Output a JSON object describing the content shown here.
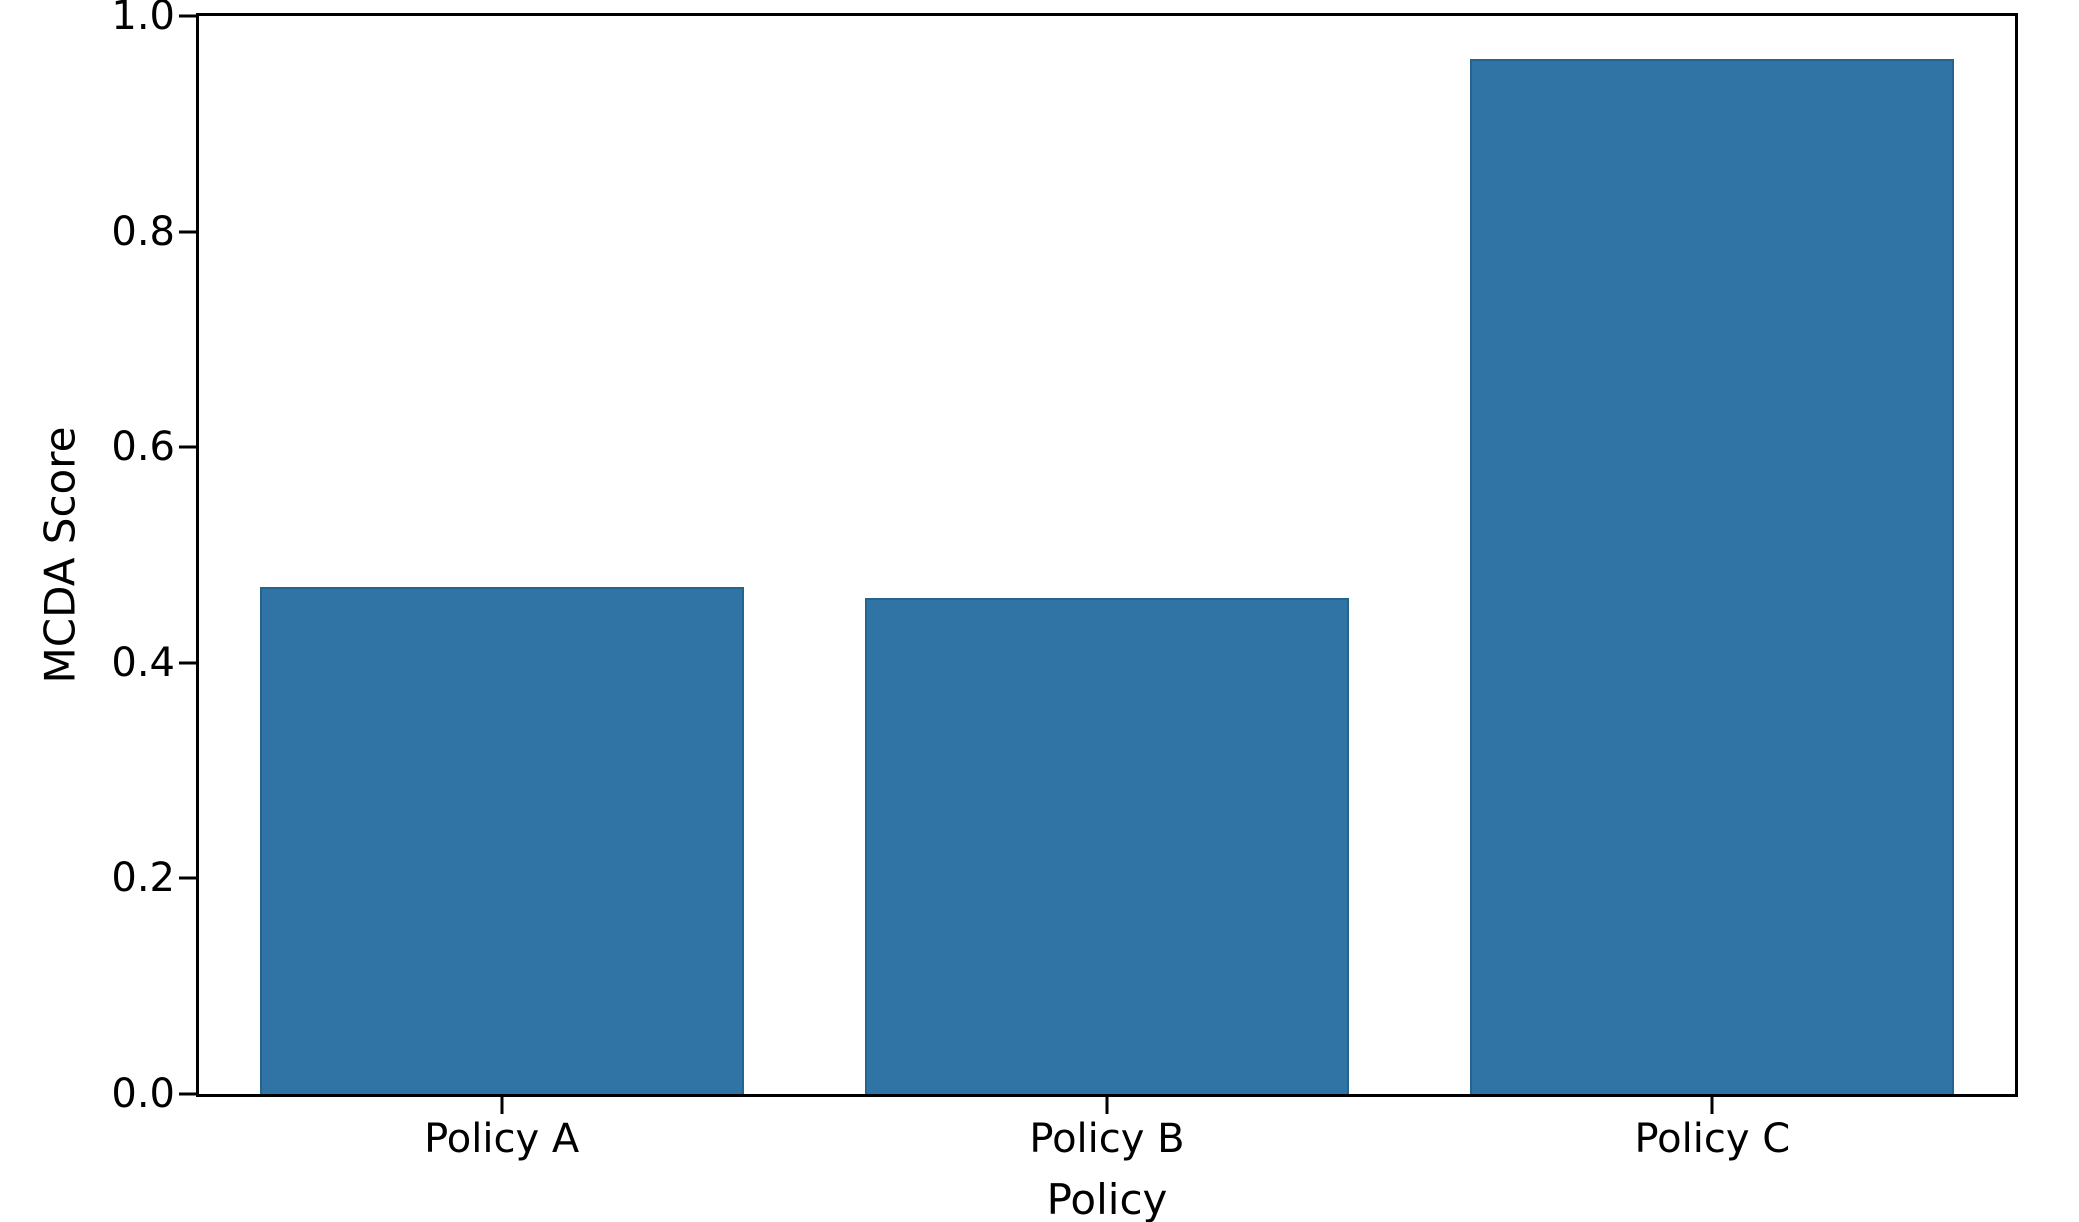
{
  "figure": {
    "background_color": "#ffffff",
    "axis_color": "#000000",
    "text_color": "#000000"
  },
  "chart_data": {
    "type": "bar",
    "title": "",
    "categories": [
      "Policy A",
      "Policy B",
      "Policy C"
    ],
    "values": [
      0.47,
      0.46,
      0.96
    ],
    "xlabel": "Policy",
    "ylabel": "MCDA Score",
    "ylim": [
      0.0,
      1.0
    ],
    "yticks": [
      0.0,
      0.2,
      0.4,
      0.6,
      0.8,
      1.0
    ],
    "ytick_labels": [
      "0.0",
      "0.2",
      "0.4",
      "0.6",
      "0.8",
      "1.0"
    ],
    "xlim": [
      -0.5,
      2.5
    ],
    "bar_width": 0.8,
    "bar_color": "#3074a6",
    "bar_edge_color": "#24648f",
    "grid": false,
    "legend_position": "none"
  }
}
